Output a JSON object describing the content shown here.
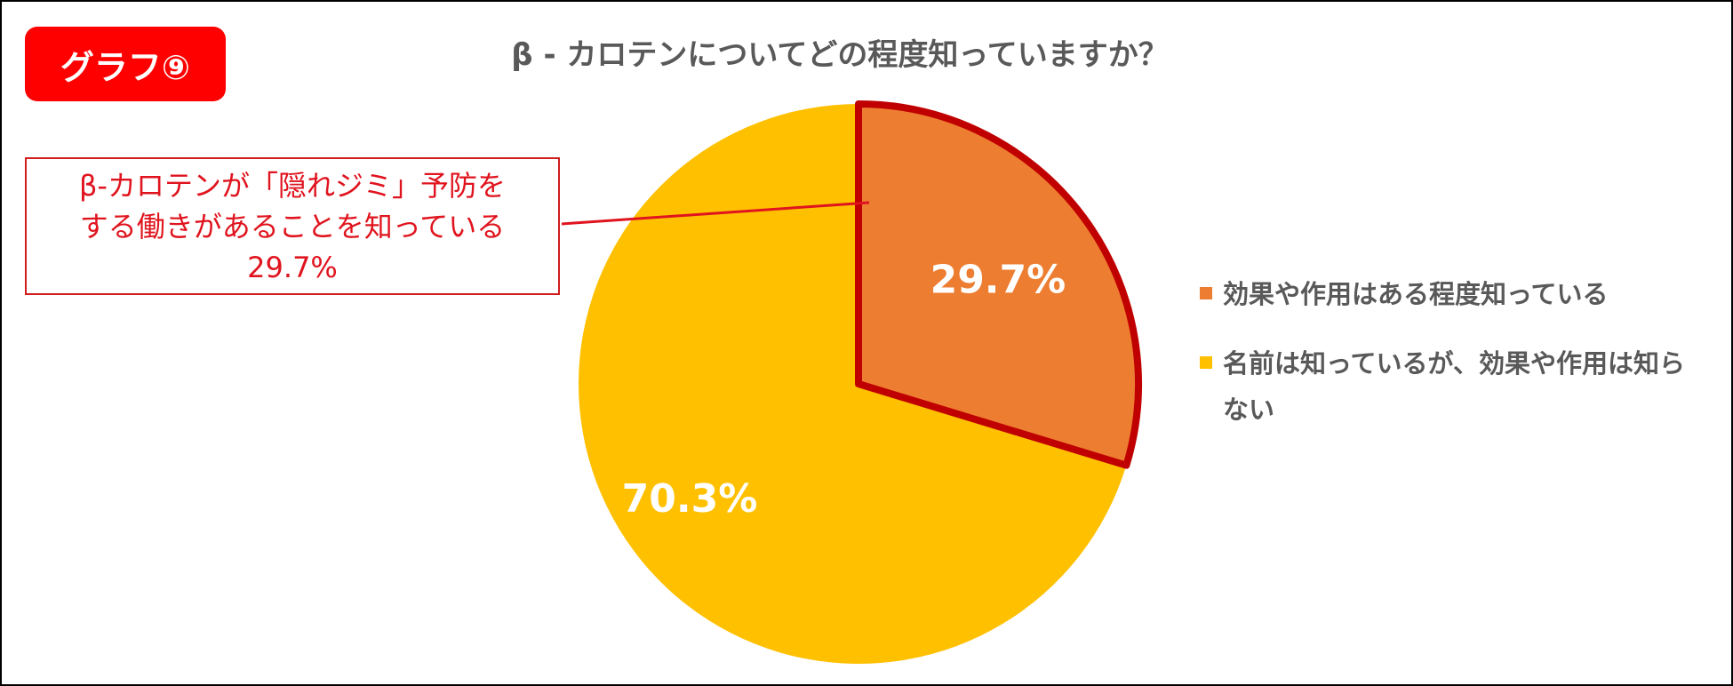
{
  "badge": {
    "label": "グラフ⑨",
    "color": "#ff0000"
  },
  "chart_data": {
    "type": "pie",
    "title": "β - カロテンについてどの程度知っていますか？",
    "slices": [
      {
        "label": "効果や作用はある程度知っている",
        "value": 29.7,
        "display": "29.7%",
        "color": "#ed7d31",
        "highlighted": true
      },
      {
        "label": "名前は知っているが、効果や作用は知らない",
        "value": 70.3,
        "display": "70.3%",
        "color": "#ffc000",
        "highlighted": false
      }
    ],
    "start_angle_deg": 0,
    "direction": "clockwise",
    "highlight_color": "#c00000",
    "legend_position": "right"
  },
  "callout": {
    "lines": [
      "β-カロテンが「隠れジミ」予防を",
      "する働きがあることを知っている",
      "29.7%"
    ],
    "color": "#e0141e"
  }
}
